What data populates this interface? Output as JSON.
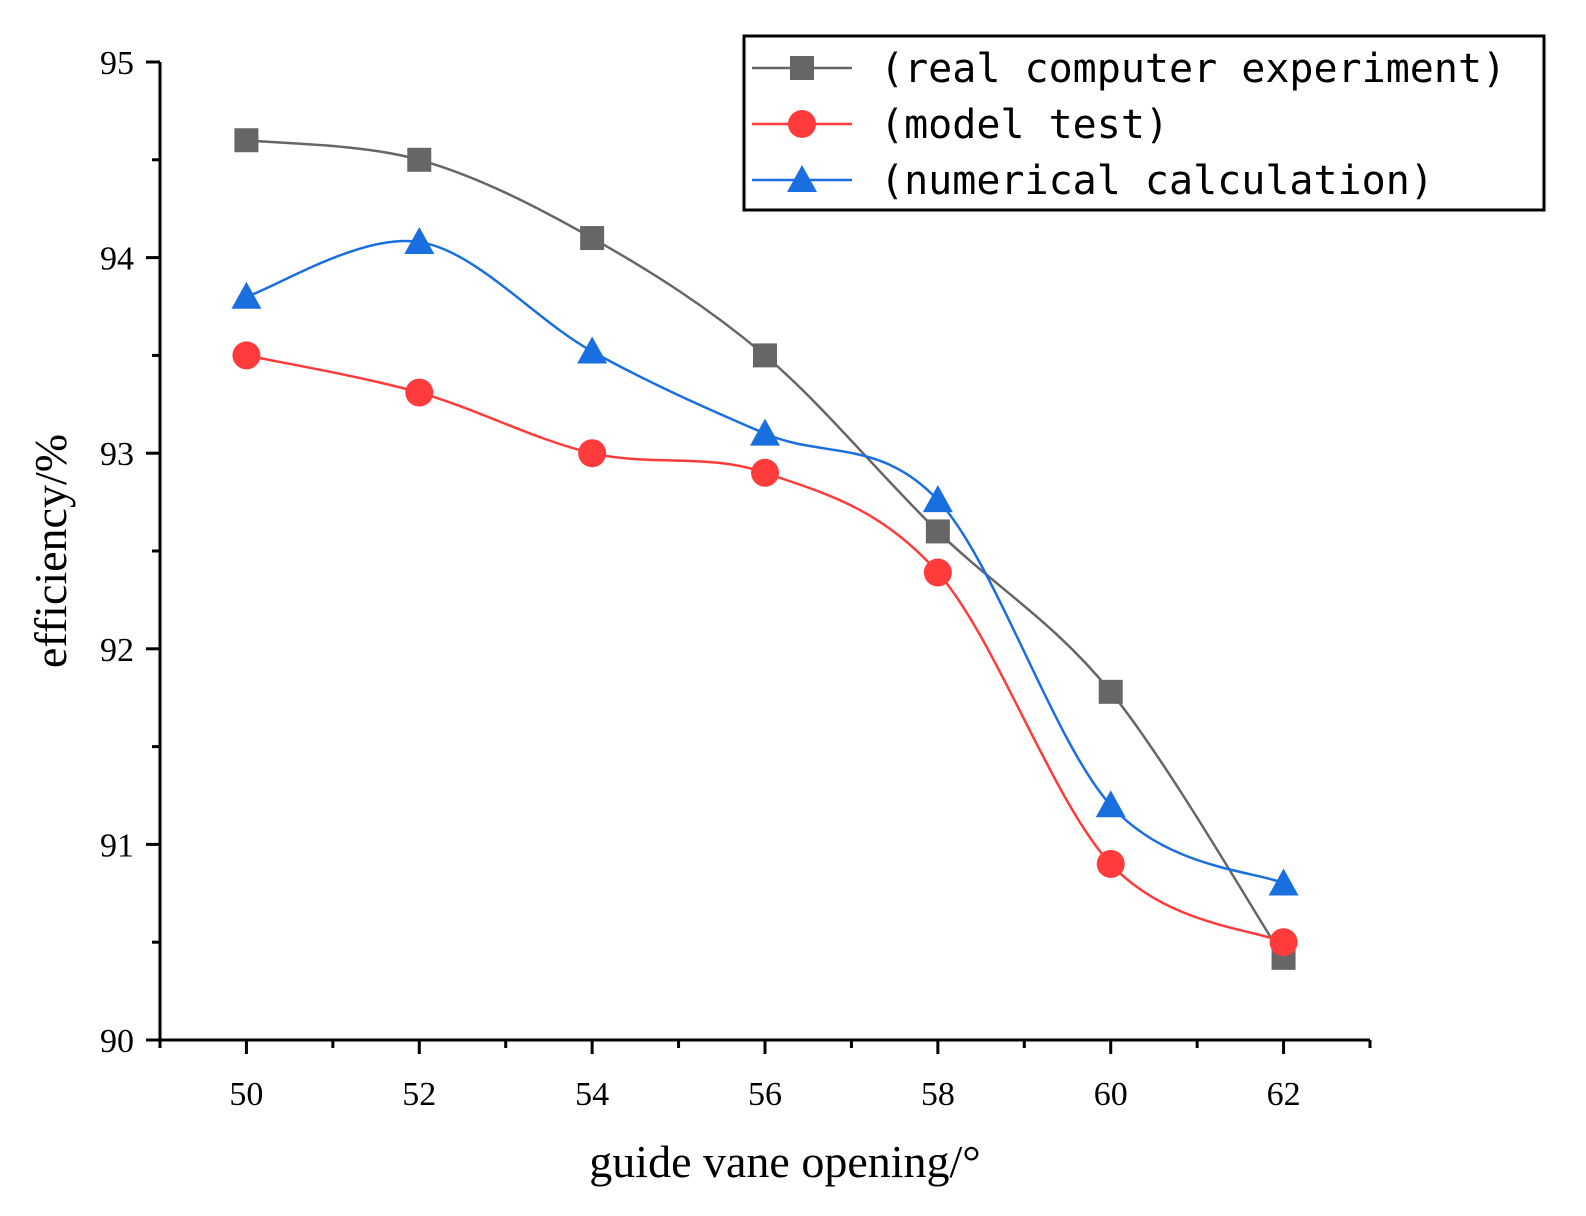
{
  "chart_data": {
    "type": "line",
    "title": "",
    "xlabel": "guide vane opening/°",
    "ylabel": "efficiency/%",
    "xlim": [
      49,
      63
    ],
    "ylim": [
      90,
      95
    ],
    "x_ticks": [
      50,
      52,
      54,
      56,
      58,
      60,
      62
    ],
    "y_ticks": [
      90,
      91,
      92,
      93,
      94,
      95
    ],
    "grid": false,
    "legend_position": "top-right",
    "x": [
      50,
      52,
      54,
      56,
      58,
      60,
      62
    ],
    "series": [
      {
        "name": "(real computer experiment)",
        "color": "#666666",
        "marker": "square",
        "values": [
          94.6,
          94.5,
          94.1,
          93.5,
          92.6,
          91.78,
          90.42
        ]
      },
      {
        "name": "(model test)",
        "color": "#ff3b3b",
        "marker": "circle",
        "values": [
          93.5,
          93.31,
          93.0,
          92.9,
          92.39,
          90.9,
          90.5
        ]
      },
      {
        "name": "(numerical calculation)",
        "color": "#1a6fe0",
        "marker": "triangle",
        "values": [
          93.8,
          94.08,
          93.52,
          93.1,
          92.76,
          91.2,
          90.8
        ]
      }
    ]
  }
}
